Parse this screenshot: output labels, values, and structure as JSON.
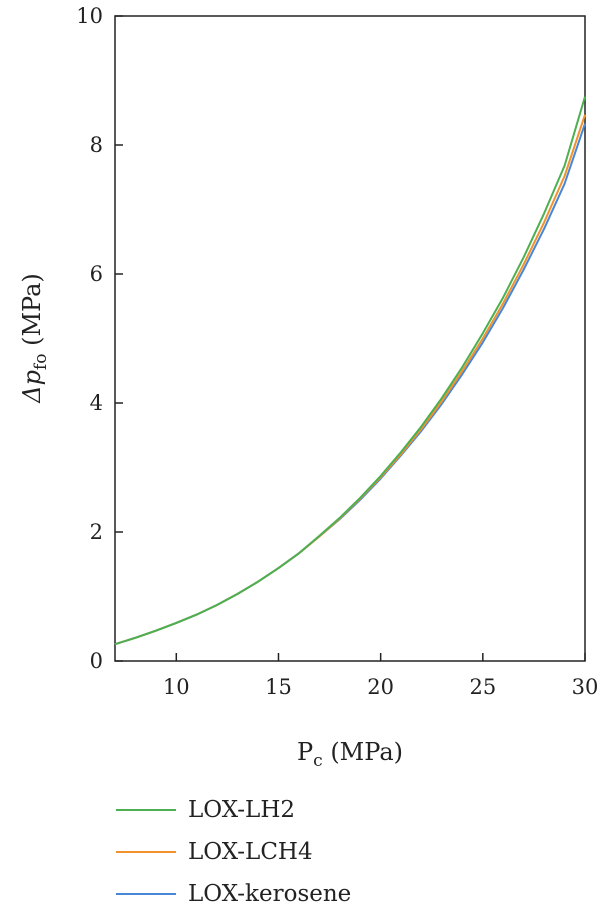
{
  "chart_data": {
    "type": "line",
    "title": "",
    "xlabel_main": "P",
    "xlabel_sub": "c",
    "xlabel_unit": " (MPa)",
    "ylabel_main": "Δp",
    "ylabel_sub": "fo",
    "ylabel_unit": " (MPa)",
    "xlim": [
      7,
      30
    ],
    "ylim": [
      0,
      10
    ],
    "xticks": [
      10,
      15,
      20,
      25,
      30
    ],
    "yticks": [
      0,
      2,
      4,
      6,
      8,
      10
    ],
    "grid": false,
    "legend_placement": "bottom-left, below plot",
    "x": [
      7,
      8,
      9,
      10,
      11,
      12,
      13,
      14,
      15,
      16,
      17,
      18,
      19,
      20,
      21,
      22,
      23,
      24,
      25,
      26,
      27,
      28,
      29,
      30
    ],
    "series": [
      {
        "name": "LOX-LH2",
        "color": "#4caf50",
        "values": [
          0.26,
          0.36,
          0.47,
          0.59,
          0.72,
          0.87,
          1.04,
          1.23,
          1.44,
          1.67,
          1.94,
          2.22,
          2.53,
          2.87,
          3.24,
          3.64,
          4.08,
          4.56,
          5.08,
          5.64,
          6.26,
          6.94,
          7.68,
          8.75
        ]
      },
      {
        "name": "LOX-LCH4",
        "color": "#f0922e",
        "values": [
          0.26,
          0.36,
          0.47,
          0.59,
          0.72,
          0.87,
          1.04,
          1.23,
          1.44,
          1.67,
          1.93,
          2.21,
          2.52,
          2.85,
          3.21,
          3.6,
          4.03,
          4.5,
          5.0,
          5.55,
          6.15,
          6.8,
          7.52,
          8.47
        ]
      },
      {
        "name": "LOX-kerosene",
        "color": "#4a86d6",
        "values": [
          0.26,
          0.36,
          0.47,
          0.59,
          0.72,
          0.87,
          1.04,
          1.23,
          1.44,
          1.67,
          1.93,
          2.2,
          2.5,
          2.83,
          3.19,
          3.57,
          3.99,
          4.45,
          4.94,
          5.48,
          6.07,
          6.7,
          7.4,
          8.33
        ]
      }
    ]
  }
}
